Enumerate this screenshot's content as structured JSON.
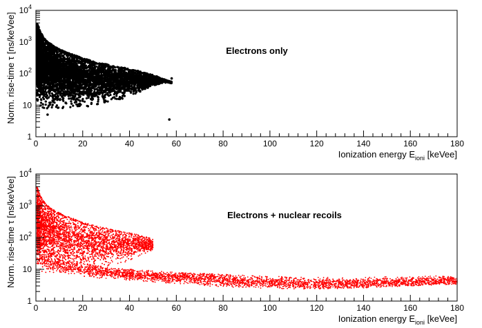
{
  "chart_data": [
    {
      "type": "scatter",
      "title": "",
      "annotation": "Electrons only",
      "xlabel": "Ionization energy E",
      "xlabel_sub": "ioni",
      "xlabel_unit": " [keVee]",
      "ylabel": "Norm. rise-time τ [ns/keVee]",
      "xlim": [
        0,
        180
      ],
      "ylim": [
        1,
        10000
      ],
      "yscale": "log",
      "x_ticks": [
        0,
        20,
        40,
        60,
        80,
        100,
        120,
        140,
        160,
        180
      ],
      "y_ticks": [
        {
          "value": 1,
          "mantissa": "1",
          "exp": ""
        },
        {
          "value": 10,
          "mantissa": "10",
          "exp": ""
        },
        {
          "value": 100,
          "mantissa": "10",
          "exp": "2"
        },
        {
          "value": 1000,
          "mantissa": "10",
          "exp": "3"
        },
        {
          "value": 10000,
          "mantissa": "10",
          "exp": "4"
        }
      ],
      "marker_color": "#000000",
      "series": [
        {
          "population": "electrons",
          "x": [
            0.5,
            1,
            1.5,
            2,
            3,
            4,
            5,
            6,
            8,
            10,
            12,
            14,
            16,
            18,
            20,
            22,
            24,
            26,
            28,
            30,
            32,
            34,
            36,
            38,
            40,
            42,
            44,
            46,
            48,
            50,
            52,
            54,
            56,
            58
          ],
          "y_median": [
            400,
            350,
            300,
            260,
            220,
            190,
            170,
            150,
            130,
            115,
            100,
            95,
            90,
            85,
            80,
            78,
            75,
            72,
            70,
            68,
            66,
            64,
            62,
            60,
            60,
            60,
            60,
            60,
            60,
            60,
            60,
            60,
            60,
            60
          ],
          "y_low": [
            15,
            12,
            10,
            9,
            8,
            8,
            8,
            8,
            8,
            8,
            8,
            8,
            8,
            9,
            9,
            9,
            10,
            10,
            11,
            12,
            13,
            14,
            15,
            17,
            19,
            22,
            25,
            30,
            35,
            40,
            45,
            50,
            50,
            50
          ],
          "y_high": [
            4000,
            3000,
            2500,
            2000,
            1500,
            1200,
            1000,
            900,
            700,
            600,
            500,
            450,
            400,
            350,
            300,
            280,
            250,
            230,
            210,
            200,
            180,
            170,
            160,
            150,
            140,
            130,
            120,
            110,
            100,
            90,
            80,
            70,
            60,
            55
          ]
        }
      ],
      "outliers": [
        {
          "x": 5,
          "y": 5
        },
        {
          "x": 57,
          "y": 3.5
        },
        {
          "x": 58,
          "y": 70
        },
        {
          "x": 50,
          "y": 60
        }
      ]
    },
    {
      "type": "scatter",
      "title": "",
      "annotation": "Electrons + nuclear recoils",
      "xlabel": "Ionization energy E",
      "xlabel_sub": "ioni",
      "xlabel_unit": " [keVee]",
      "ylabel": "Norm. rise-time τ [ns/keVee]",
      "xlim": [
        0,
        180
      ],
      "ylim": [
        1,
        10000
      ],
      "yscale": "log",
      "x_ticks": [
        0,
        20,
        40,
        60,
        80,
        100,
        120,
        140,
        160,
        180
      ],
      "y_ticks": [
        {
          "value": 1,
          "mantissa": "1",
          "exp": ""
        },
        {
          "value": 10,
          "mantissa": "10",
          "exp": ""
        },
        {
          "value": 100,
          "mantissa": "10",
          "exp": "2"
        },
        {
          "value": 1000,
          "mantissa": "10",
          "exp": "3"
        },
        {
          "value": 10000,
          "mantissa": "10",
          "exp": "4"
        }
      ],
      "marker_color": "#ff0000",
      "series": [
        {
          "population": "electrons",
          "x": [
            0.5,
            1,
            1.5,
            2,
            3,
            4,
            5,
            6,
            8,
            10,
            12,
            14,
            16,
            18,
            20,
            22,
            24,
            26,
            28,
            30,
            32,
            34,
            36,
            38,
            40,
            42,
            44,
            46,
            48,
            50
          ],
          "y_median": [
            400,
            350,
            300,
            260,
            220,
            190,
            170,
            150,
            130,
            115,
            100,
            95,
            90,
            85,
            80,
            78,
            75,
            72,
            70,
            68,
            66,
            64,
            62,
            60,
            60,
            60,
            60,
            60,
            60,
            60
          ],
          "y_low": [
            15,
            12,
            10,
            9,
            8,
            8,
            8,
            8,
            8,
            8,
            8,
            8,
            8,
            9,
            9,
            9,
            10,
            10,
            11,
            12,
            13,
            14,
            15,
            17,
            19,
            22,
            25,
            30,
            35,
            40
          ],
          "y_high": [
            4000,
            3000,
            2500,
            2000,
            1500,
            1200,
            1000,
            900,
            700,
            600,
            500,
            450,
            400,
            350,
            300,
            280,
            250,
            230,
            210,
            200,
            180,
            170,
            160,
            150,
            140,
            130,
            120,
            110,
            100,
            90
          ]
        },
        {
          "population": "nuclear recoils",
          "x": [
            1,
            2,
            4,
            6,
            10,
            15,
            20,
            30,
            40,
            50,
            60,
            70,
            80,
            90,
            100,
            110,
            120,
            130,
            140,
            150,
            160,
            170,
            180
          ],
          "y_median": [
            30,
            25,
            20,
            17,
            14,
            12,
            10,
            8,
            7,
            6,
            5.5,
            5,
            4.5,
            4,
            3.8,
            3.6,
            3.5,
            3.5,
            3.6,
            3.8,
            4,
            4.2,
            4.5
          ],
          "y_low": [
            15,
            12,
            10,
            9,
            8,
            7,
            6,
            5,
            4.5,
            4,
            3.5,
            3,
            2.8,
            2.6,
            2.5,
            2.4,
            2.4,
            2.5,
            2.6,
            2.8,
            3,
            3.2,
            3.4
          ],
          "y_high": [
            60,
            50,
            40,
            33,
            25,
            20,
            16,
            12,
            10,
            9,
            8,
            7.5,
            7,
            6.5,
            6,
            5.8,
            5.6,
            5.5,
            5.6,
            5.8,
            6,
            6.2,
            6.5
          ]
        }
      ]
    }
  ]
}
